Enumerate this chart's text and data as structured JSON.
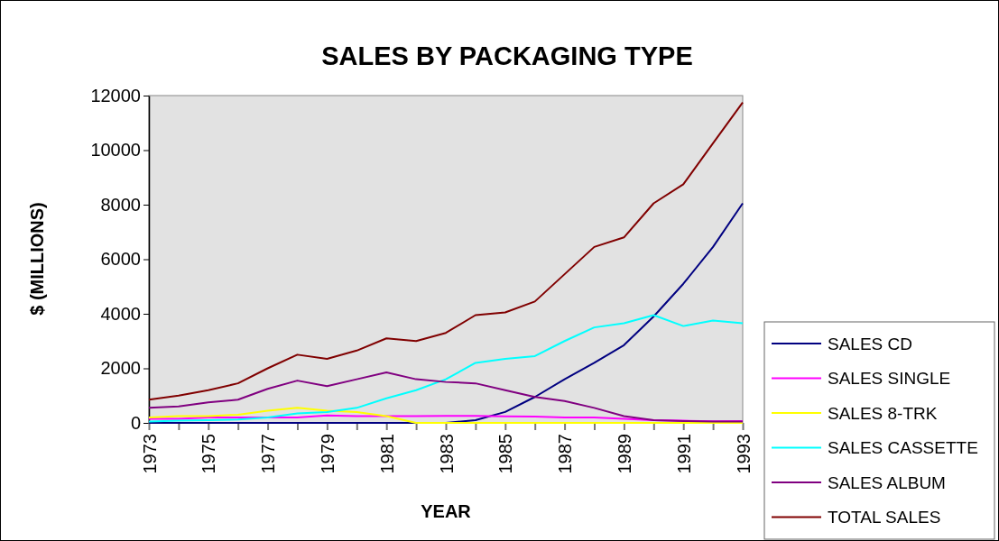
{
  "chart_data": {
    "type": "line",
    "title": "SALES BY PACKAGING TYPE",
    "xlabel": "YEAR",
    "ylabel": "$ (MILLIONS)",
    "x": [
      1973,
      1974,
      1975,
      1976,
      1977,
      1978,
      1979,
      1980,
      1981,
      1982,
      1983,
      1984,
      1985,
      1986,
      1987,
      1988,
      1989,
      1990,
      1991,
      1992,
      1993
    ],
    "series": [
      {
        "name": "SALES CD",
        "color": "#000080",
        "values": [
          0,
          0,
          0,
          0,
          0,
          0,
          0,
          0,
          0,
          0,
          0,
          100,
          400,
          950,
          1600,
          2200,
          2850,
          3900,
          5100,
          6450,
          8050
        ]
      },
      {
        "name": "SALES SINGLE",
        "color": "#ff00ff",
        "values": [
          150,
          150,
          200,
          200,
          200,
          200,
          270,
          250,
          250,
          250,
          260,
          260,
          240,
          230,
          200,
          200,
          150,
          100,
          80,
          60,
          70
        ]
      },
      {
        "name": "SALES 8-TRK",
        "color": "#ffff00",
        "values": [
          200,
          250,
          250,
          300,
          450,
          550,
          450,
          400,
          250,
          0,
          0,
          0,
          0,
          0,
          0,
          0,
          0,
          0,
          0,
          0,
          0
        ]
      },
      {
        "name": "SALES CASSETTE",
        "color": "#00ffff",
        "values": [
          50,
          80,
          100,
          120,
          200,
          350,
          400,
          550,
          900,
          1200,
          1600,
          2200,
          2350,
          2450,
          3000,
          3500,
          3650,
          3950,
          3550,
          3750,
          3650
        ]
      },
      {
        "name": "SALES ALBUM",
        "color": "#800080",
        "values": [
          550,
          600,
          750,
          850,
          1250,
          1550,
          1350,
          1600,
          1850,
          1600,
          1500,
          1450,
          1200,
          950,
          800,
          550,
          250,
          100,
          70,
          50,
          50
        ]
      },
      {
        "name": "TOTAL SALES",
        "color": "#800000",
        "values": [
          850,
          1000,
          1200,
          1450,
          2000,
          2500,
          2350,
          2650,
          3100,
          3000,
          3300,
          3950,
          4050,
          4450,
          5450,
          6450,
          6800,
          8050,
          8750,
          10250,
          11750
        ]
      }
    ],
    "xlim": [
      1973,
      1993
    ],
    "xticks": [
      1973,
      {
        "value": 1974,
        "label": null
      },
      1975,
      {
        "value": 1976,
        "label": null
      },
      1977,
      {
        "value": 1978,
        "label": null
      },
      1979,
      {
        "value": 1980,
        "label": null
      },
      1981,
      {
        "value": 1982,
        "label": null
      },
      1983,
      {
        "value": 1984,
        "label": null
      },
      1985,
      {
        "value": 1986,
        "label": null
      },
      1987,
      {
        "value": 1988,
        "label": null
      },
      1989,
      {
        "value": 1990,
        "label": null
      },
      1991,
      {
        "value": 1992,
        "label": null
      },
      1993
    ],
    "ylim": [
      0,
      12000
    ],
    "yticks": [
      0,
      2000,
      4000,
      6000,
      8000,
      10000,
      12000
    ],
    "grid": false,
    "legend": "bottom right",
    "marker": "none",
    "line_style": "solid"
  }
}
